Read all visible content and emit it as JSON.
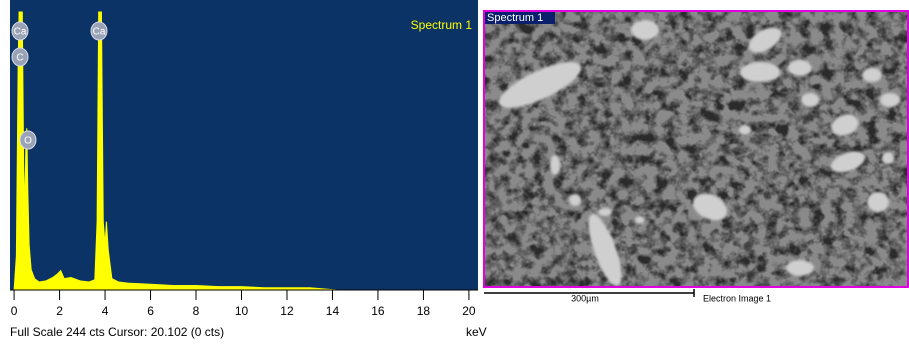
{
  "chart_data": {
    "type": "area",
    "title": "Spectrum 1",
    "x": [
      0.0,
      0.1,
      0.18,
      0.22,
      0.28,
      0.36,
      0.42,
      0.47,
      0.52,
      0.56,
      0.6,
      0.66,
      0.75,
      0.9,
      1.1,
      1.4,
      1.7,
      1.9,
      2.05,
      2.2,
      2.5,
      2.9,
      3.3,
      3.55,
      3.65,
      3.72,
      3.78,
      3.84,
      3.92,
      4.0,
      4.06,
      4.14,
      4.3,
      4.6,
      5.0,
      6.0,
      7.0,
      8.0,
      9.0,
      10.0,
      11.0,
      12.0,
      13.0,
      13.6,
      14.2,
      20.4
    ],
    "values": [
      0,
      30,
      200,
      244,
      244,
      244,
      110,
      70,
      130,
      142,
      90,
      40,
      18,
      10,
      7,
      8,
      11,
      14,
      17,
      10,
      11,
      8,
      7,
      9,
      60,
      244,
      244,
      244,
      60,
      40,
      60,
      35,
      10,
      7,
      6,
      5,
      4,
      4,
      3,
      3,
      2,
      2,
      2,
      1,
      0,
      0
    ],
    "color": "#ffff00",
    "background": "#0b3366",
    "xlim": [
      -0.18,
      20.4
    ],
    "ylim": [
      0,
      244
    ],
    "xticks": [
      0,
      2,
      4,
      6,
      8,
      10,
      12,
      14,
      16,
      18,
      20
    ],
    "x_unit": "keV",
    "footer": "Full Scale 244 cts Cursor: 20.102  (0 cts)",
    "annotations": [
      "Ca",
      "C",
      "O",
      "Ca"
    ]
  },
  "electron_image": {
    "label": "Spectrum 1",
    "scale_bar": "300µm",
    "caption": "Electron Image 1"
  }
}
